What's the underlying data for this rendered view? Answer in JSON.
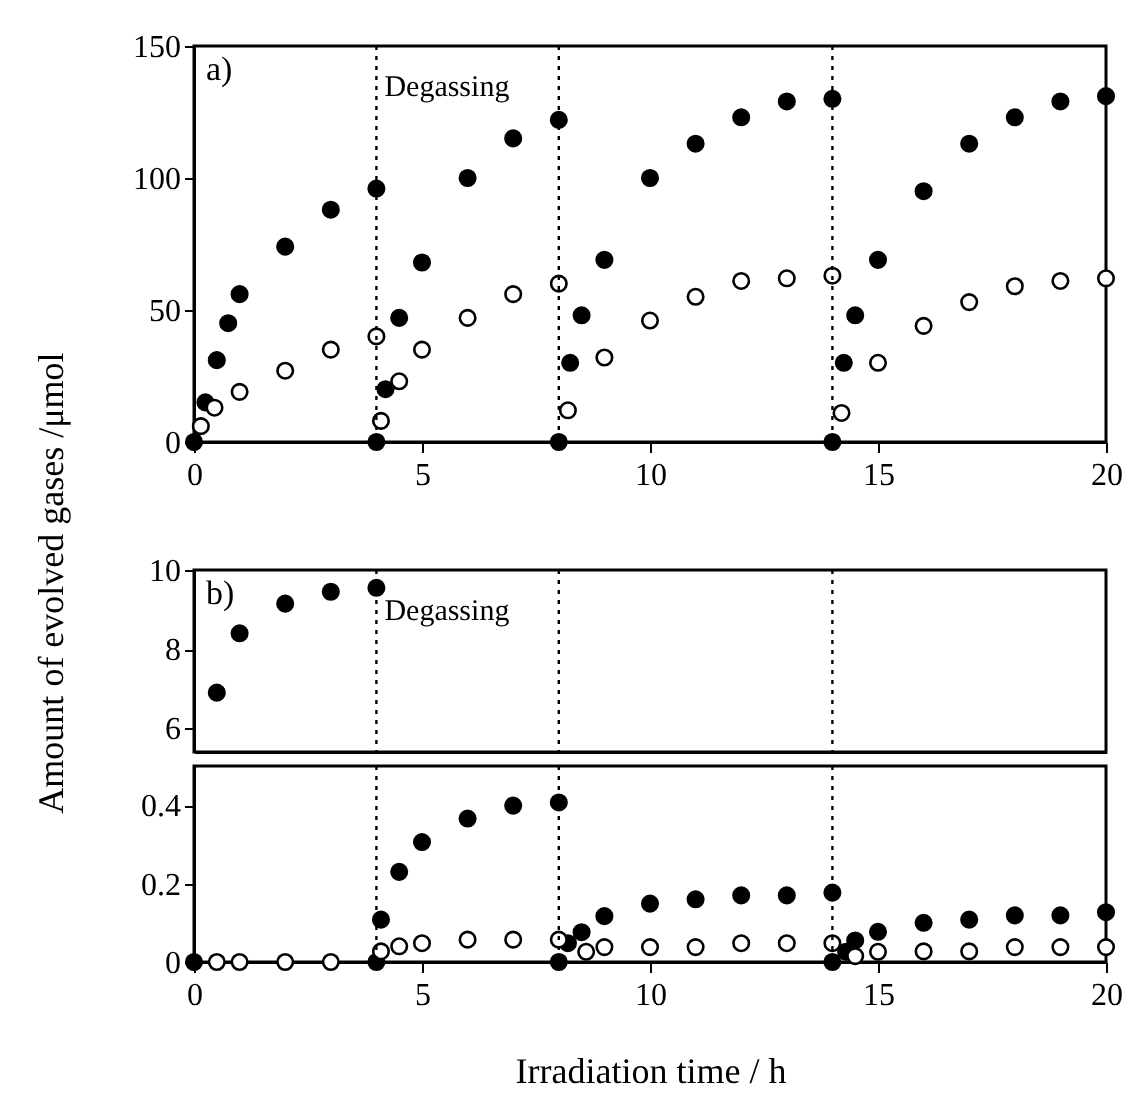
{
  "chart_data": [
    {
      "type": "scatter",
      "ylabel": "Amount of evolved gases /μmol",
      "xlim": [
        0,
        20
      ],
      "xticks": [
        0,
        5,
        10,
        15,
        20
      ],
      "ylim": [
        0,
        150
      ],
      "yticks": [
        0,
        50,
        100,
        150
      ],
      "marker": "circle",
      "legend": false,
      "grid": false,
      "series": [
        {
          "color": "#000000",
          "x": [
            0,
            0.25,
            0.5,
            0.75,
            1,
            2,
            3,
            4,
            4,
            4.2,
            4.5,
            5,
            6,
            7,
            8,
            8,
            8.25,
            8.5,
            9,
            10,
            11,
            12,
            13,
            14,
            14,
            14.25,
            14.5,
            15,
            16,
            17,
            18,
            19,
            20
          ],
          "values": [
            0,
            15,
            31,
            45,
            56,
            74,
            88,
            96,
            0,
            20,
            47,
            68,
            100,
            115,
            122,
            0,
            30,
            48,
            69,
            100,
            113,
            123,
            129,
            130,
            0,
            30,
            48,
            69,
            95,
            113,
            123,
            129,
            131
          ]
        },
        {
          "color": "#ffffff",
          "x": [
            0.15,
            0.45,
            1,
            2,
            3,
            4,
            4.1,
            4.5,
            5,
            6,
            7,
            8,
            8.2,
            9,
            10,
            11,
            12,
            13,
            14,
            14.2,
            15,
            16,
            17,
            18,
            19,
            20
          ],
          "values": [
            6,
            13,
            19,
            27,
            35,
            40,
            8,
            23,
            35,
            47,
            56,
            60,
            12,
            32,
            46,
            55,
            61,
            62,
            63,
            11,
            30,
            44,
            53,
            59,
            61,
            62
          ]
        }
      ],
      "ref_lines": [
        {
          "axis": "x",
          "value": 4,
          "line_style": "dotted",
          "label": "Degassing"
        },
        {
          "axis": "x",
          "value": 8,
          "line_style": "dotted"
        },
        {
          "axis": "x",
          "value": 14,
          "line_style": "dotted"
        }
      ],
      "annotations": [
        "a)"
      ]
    },
    {
      "type": "scatter",
      "xlim": [
        0,
        20
      ],
      "xticks": [
        0,
        5,
        10,
        15,
        20
      ],
      "ylim": [
        5.4,
        10
      ],
      "yticks": [
        6,
        8,
        10
      ],
      "marker": "circle",
      "legend": false,
      "grid": false,
      "tick_labels": "y",
      "series": [
        {
          "color": "#000000",
          "x": [
            0.5,
            1,
            2,
            3,
            4
          ],
          "values": [
            6.9,
            8.4,
            9.15,
            9.45,
            9.55
          ]
        }
      ],
      "ref_lines": [
        {
          "axis": "x",
          "value": 4,
          "line_style": "dotted",
          "label": "Degassing"
        },
        {
          "axis": "x",
          "value": 8,
          "line_style": "dotted"
        },
        {
          "axis": "x",
          "value": 14,
          "line_style": "dotted"
        }
      ],
      "annotations": [
        "b)"
      ]
    },
    {
      "type": "scatter",
      "xlabel": "Irradiation time / h",
      "xlim": [
        0,
        20
      ],
      "xticks": [
        0,
        5,
        10,
        15,
        20
      ],
      "ylim": [
        0,
        0.5
      ],
      "yticks": [
        0,
        0.2,
        0.4
      ],
      "marker": "circle",
      "legend": false,
      "grid": false,
      "series": [
        {
          "color": "#000000",
          "x": [
            0,
            4,
            4.1,
            4.5,
            5,
            6,
            7,
            8,
            8,
            8.2,
            8.5,
            9,
            10,
            11,
            12,
            13,
            14,
            14,
            14.3,
            14.5,
            15,
            16,
            17,
            18,
            19,
            20
          ],
          "values": [
            0,
            0,
            0.108,
            0.23,
            0.306,
            0.366,
            0.399,
            0.407,
            0,
            0.048,
            0.076,
            0.117,
            0.149,
            0.16,
            0.17,
            0.17,
            0.177,
            0,
            0.026,
            0.055,
            0.077,
            0.1,
            0.108,
            0.119,
            0.119,
            0.127
          ]
        },
        {
          "color": "#ffffff",
          "x": [
            0.5,
            1,
            2,
            3,
            4.1,
            4.5,
            5,
            6,
            7,
            8,
            8.6,
            9,
            10,
            11,
            12,
            13,
            14,
            14.5,
            15,
            16,
            17,
            18,
            19,
            20
          ],
          "values": [
            0,
            0,
            0,
            0,
            0.027,
            0.04,
            0.048,
            0.057,
            0.057,
            0.057,
            0.026,
            0.038,
            0.038,
            0.038,
            0.048,
            0.048,
            0.048,
            0.015,
            0.026,
            0.027,
            0.027,
            0.038,
            0.038,
            0.038
          ]
        }
      ],
      "ref_lines": [
        {
          "axis": "x",
          "value": 4,
          "line_style": "dotted"
        },
        {
          "axis": "x",
          "value": 8,
          "line_style": "dotted"
        },
        {
          "axis": "x",
          "value": 14,
          "line_style": "dotted"
        }
      ]
    }
  ]
}
